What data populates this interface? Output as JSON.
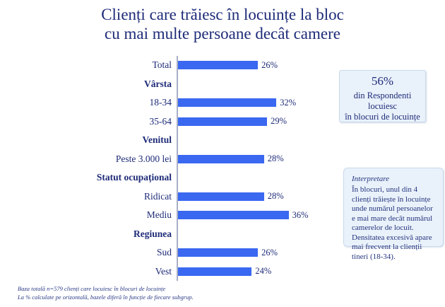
{
  "title": {
    "line1": "Clienți care trăiesc în locuințe la bloc",
    "line2": "cu mai multe persoane decât camere"
  },
  "chart_data": {
    "type": "bar",
    "orientation": "horizontal",
    "title": "Clienți care trăiesc în locuințe la bloc cu mai multe persoane decât camere",
    "unit": "%",
    "value_suffix": "%",
    "xlim": [
      0,
      40
    ],
    "grid": false,
    "legend": false,
    "bar_color": "#3a68f0",
    "rows": [
      {
        "type": "bar",
        "label": "Total",
        "value": 26
      },
      {
        "type": "header",
        "label": "Vârsta"
      },
      {
        "type": "bar",
        "label": "18-34",
        "value": 32
      },
      {
        "type": "bar",
        "label": "35-64",
        "value": 29
      },
      {
        "type": "header",
        "label": "Venitul"
      },
      {
        "type": "bar",
        "label": "Peste 3.000 lei",
        "value": 28
      },
      {
        "type": "header",
        "label": "Statut ocupațional"
      },
      {
        "type": "bar",
        "label": "Ridicat",
        "value": 28
      },
      {
        "type": "bar",
        "label": "Mediu",
        "value": 36
      },
      {
        "type": "header",
        "label": "Regiunea"
      },
      {
        "type": "bar",
        "label": "Sud",
        "value": 26
      },
      {
        "type": "bar",
        "label": "Vest",
        "value": 24
      }
    ]
  },
  "callout": {
    "headline": "56%",
    "lines": [
      "din Respondenti",
      "locuiesc",
      "în blocuri de locuințe"
    ]
  },
  "interpretation": {
    "heading": "Interpretare",
    "body": "În blocuri, unul din 4 clienți trăiește în locuințe unde numărul persoanelor e mai mare decât numărul camerelor de locuit. Densitatea excesivă apare mai frecvent la clienții tineri (18-34)."
  },
  "footnotes": [
    "Baza totală n=579 clienți care locuiesc în blocuri de locuințe",
    "La % calculate pe orizontală, bazele diferă în funcție de fiecare subgrup."
  ],
  "colors": {
    "navy": "#1e2b78",
    "bar": "#3a68f0",
    "boxbg": "#e9f1fa",
    "boxborder": "#c9d9ec",
    "axis": "#a8aec6"
  }
}
